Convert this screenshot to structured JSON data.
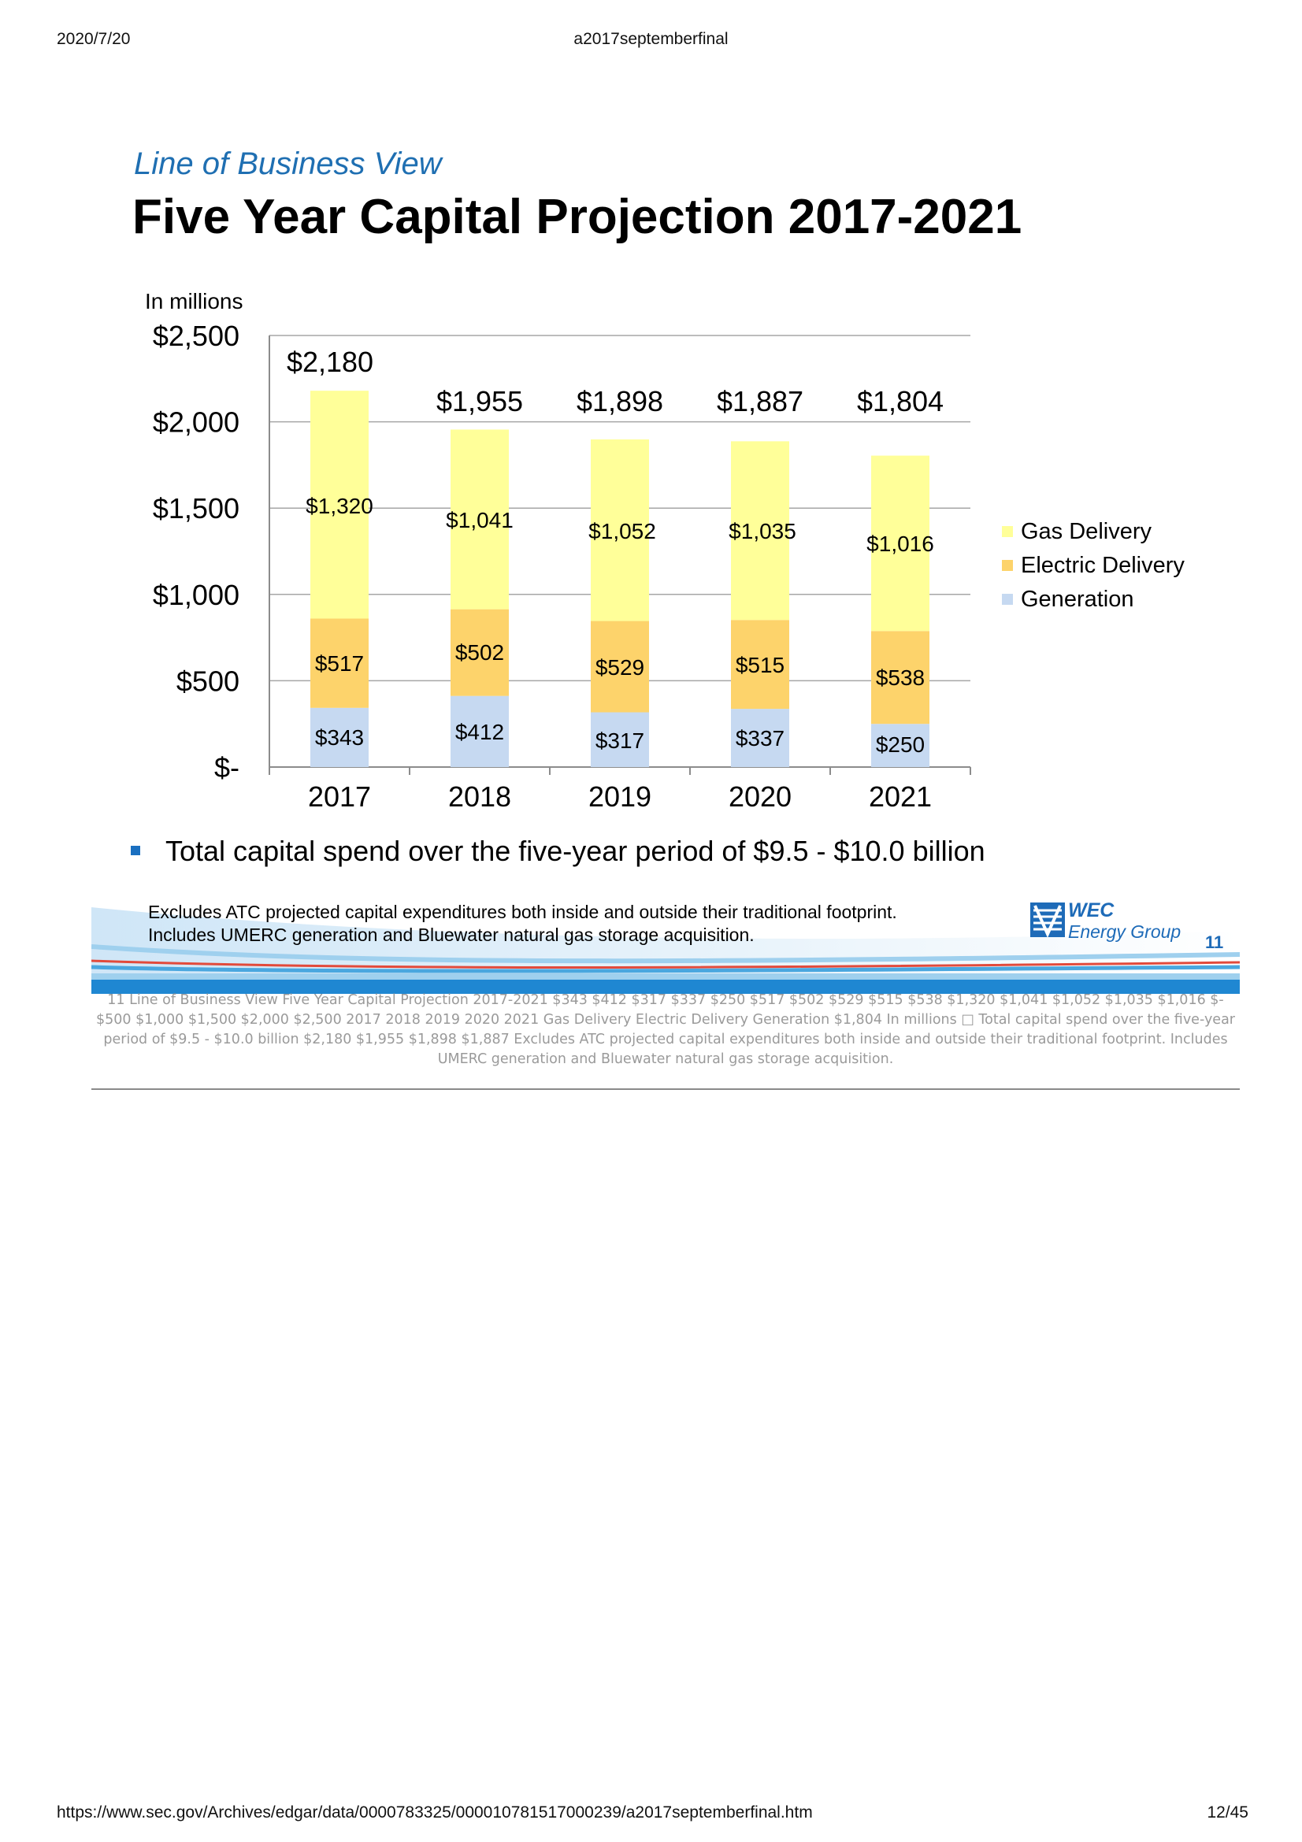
{
  "browser": {
    "date": "2020/7/20",
    "doc_title": "a2017septemberfinal",
    "url": "https://www.sec.gov/Archives/edgar/data/0000783325/000010781517000239/a2017septemberfinal.htm",
    "page": "12/45"
  },
  "slide": {
    "subtitle": "Line of Business View",
    "title": "Five Year Capital Projection 2017-2021",
    "bullet": "Total capital spend over the five-year period of $9.5 - $10.0 billion",
    "note1": "Excludes ATC projected capital expenditures both inside and outside their traditional footprint.",
    "note2": "Includes UMERC generation and Bluewater natural gas storage acquisition.",
    "logo_line1": "WEC",
    "logo_line2": "Energy Group",
    "slide_number": "11",
    "alt_text": "11  Line of Business View  Five Year Capital Projection 2017-2021   $343 $412 $317 $337 $250  $517 $502 $529 $515 $538  $1,320  $1,041 $1,052 $1,035  $1,016  $- $500 $1,000 $1,500 $2,000 $2,500 2017 2018 2019 2020 2021 Gas Delivery Electric Delivery Generation $1,804  In millions  □  Total capital spend over the five-year period of $9.5 - $10.0 billion  $2,180  $1,955 $1,898 $1,887  Excludes ATC projected capital expenditures both inside and outside their traditional footprint. Includes UMERC generation and Bluewater natural gas storage acquisition.",
    "colors": {
      "accent": "#1f6fb2",
      "generation": "#c6d9f1",
      "electric": "#fdd36b",
      "gas": "#ffff99"
    }
  },
  "chart_data": {
    "type": "bar",
    "stacked": true,
    "unit_label": "In millions",
    "categories": [
      "2017",
      "2018",
      "2019",
      "2020",
      "2021"
    ],
    "series": [
      {
        "name": "Generation",
        "values": [
          343,
          412,
          317,
          337,
          250
        ],
        "labels": [
          "$343",
          "$412",
          "$317",
          "$337",
          "$250"
        ],
        "color": "#c6d9f1"
      },
      {
        "name": "Electric Delivery",
        "values": [
          517,
          502,
          529,
          515,
          538
        ],
        "labels": [
          "$517",
          "$502",
          "$529",
          "$515",
          "$538"
        ],
        "color": "#fdd36b"
      },
      {
        "name": "Gas Delivery",
        "values": [
          1320,
          1041,
          1052,
          1035,
          1016
        ],
        "labels": [
          "$1,320",
          "$1,041",
          "$1,052",
          "$1,035",
          "$1,016"
        ],
        "color": "#ffff99"
      }
    ],
    "totals": [
      2180,
      1955,
      1898,
      1887,
      1804
    ],
    "total_labels": [
      "$2,180",
      "$1,955",
      "$1,898",
      "$1,887",
      "$1,804"
    ],
    "y_ticks": [
      0,
      500,
      1000,
      1500,
      2000,
      2500
    ],
    "y_tick_labels": [
      "$-",
      "$500",
      "$1,000",
      "$1,500",
      "$2,000",
      "$2,500"
    ],
    "ylim": [
      0,
      2500
    ],
    "legend_order": [
      "Gas Delivery",
      "Electric Delivery",
      "Generation"
    ],
    "legend_position": "right",
    "grid": true
  }
}
